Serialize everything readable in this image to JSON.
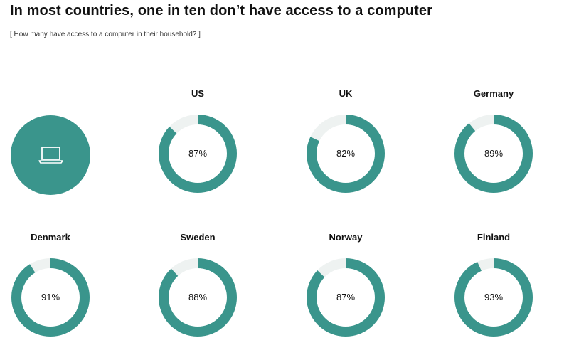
{
  "header": {
    "title": "In most countries, one in ten don’t have access to a computer",
    "subtitle": "[ How many have access to a computer in their household? ]"
  },
  "icon": {
    "name": "laptop-icon"
  },
  "colors": {
    "fill": "#3a958c",
    "track": "#eef2f1"
  },
  "chart_data": {
    "type": "donut",
    "categories": [
      "US",
      "UK",
      "Germany",
      "Denmark",
      "Sweden",
      "Norway",
      "Finland"
    ],
    "values": [
      87,
      82,
      89,
      91,
      88,
      87,
      93
    ],
    "labels": [
      "87%",
      "82%",
      "89%",
      "91%",
      "88%",
      "87%",
      "93%"
    ],
    "max": 100
  }
}
